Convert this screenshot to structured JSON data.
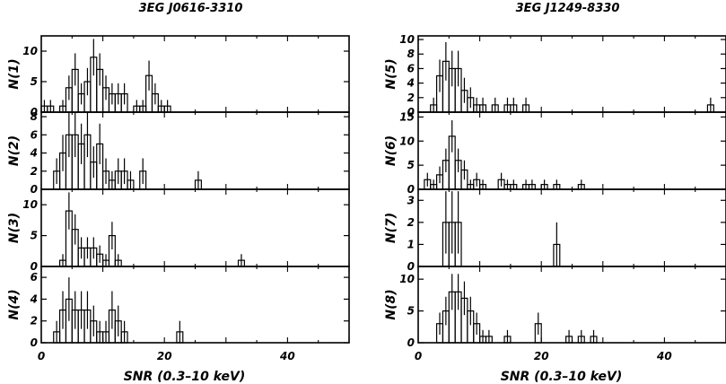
{
  "chart_data": [
    {
      "type": "histogram",
      "title": "3EG J0616-3310",
      "xlabel": "SNR (0.3–10 keV)",
      "xlim": [
        0,
        50
      ],
      "xticks": [
        "0",
        "20",
        "40"
      ],
      "panels": [
        {
          "ylabel": "N(1)",
          "ylim": [
            0,
            12.5
          ],
          "yticks": [
            "0",
            "5",
            "10"
          ],
          "bins": [
            [
              0,
              1
            ],
            [
              1,
              1
            ],
            [
              3,
              1
            ],
            [
              4,
              4
            ],
            [
              5,
              7
            ],
            [
              6,
              3
            ],
            [
              7,
              5
            ],
            [
              8,
              9
            ],
            [
              9,
              7
            ],
            [
              10,
              4
            ],
            [
              11,
              3
            ],
            [
              12,
              3
            ],
            [
              13,
              3
            ],
            [
              15,
              1
            ],
            [
              16,
              1
            ],
            [
              17,
              6
            ],
            [
              18,
              3
            ],
            [
              19,
              1
            ],
            [
              20,
              1
            ]
          ]
        },
        {
          "ylabel": "N(2)",
          "ylim": [
            0,
            8.5
          ],
          "yticks": [
            "0",
            "2",
            "4",
            "6",
            "8"
          ],
          "bins": [
            [
              2,
              2
            ],
            [
              3,
              4
            ],
            [
              4,
              6
            ],
            [
              5,
              6
            ],
            [
              6,
              5
            ],
            [
              7,
              6
            ],
            [
              8,
              3
            ],
            [
              9,
              5
            ],
            [
              10,
              2
            ],
            [
              11,
              1
            ],
            [
              12,
              2
            ],
            [
              13,
              2
            ],
            [
              14,
              1
            ],
            [
              16,
              2
            ],
            [
              25,
              1
            ]
          ]
        },
        {
          "ylabel": "N(3)",
          "ylim": [
            0,
            12.5
          ],
          "yticks": [
            "0",
            "5",
            "10"
          ],
          "bins": [
            [
              3,
              1
            ],
            [
              4,
              9
            ],
            [
              5,
              6
            ],
            [
              6,
              3
            ],
            [
              7,
              3
            ],
            [
              8,
              3
            ],
            [
              9,
              2
            ],
            [
              10,
              1
            ],
            [
              11,
              5
            ],
            [
              12,
              1
            ],
            [
              32,
              1
            ]
          ]
        },
        {
          "ylabel": "N(4)",
          "ylim": [
            0,
            7
          ],
          "yticks": [
            "0",
            "2",
            "4",
            "6"
          ],
          "bins": [
            [
              2,
              1
            ],
            [
              3,
              3
            ],
            [
              4,
              4
            ],
            [
              5,
              3
            ],
            [
              6,
              3
            ],
            [
              7,
              3
            ],
            [
              8,
              2
            ],
            [
              9,
              1
            ],
            [
              10,
              1
            ],
            [
              11,
              3
            ],
            [
              12,
              2
            ],
            [
              13,
              1
            ],
            [
              22,
              1
            ]
          ]
        }
      ]
    },
    {
      "type": "histogram",
      "title": "3EG J1249-8330",
      "xlabel": "SNR (0.3–10 keV)",
      "xlim": [
        0,
        50
      ],
      "xticks": [
        "0",
        "20",
        "40"
      ],
      "panels": [
        {
          "ylabel": "N(5)",
          "ylim": [
            0,
            10.5
          ],
          "yticks": [
            "0",
            "2",
            "4",
            "6",
            "8",
            "10"
          ],
          "bins": [
            [
              2,
              1
            ],
            [
              3,
              5
            ],
            [
              4,
              7
            ],
            [
              5,
              6
            ],
            [
              6,
              6
            ],
            [
              7,
              3
            ],
            [
              8,
              2
            ],
            [
              9,
              1
            ],
            [
              10,
              1
            ],
            [
              12,
              1
            ],
            [
              14,
              1
            ],
            [
              15,
              1
            ],
            [
              17,
              1
            ],
            [
              47,
              1
            ]
          ]
        },
        {
          "ylabel": "N(6)",
          "ylim": [
            0,
            16
          ],
          "yticks": [
            "0",
            "5",
            "10",
            "15"
          ],
          "bins": [
            [
              1,
              2
            ],
            [
              2,
              1
            ],
            [
              3,
              3
            ],
            [
              4,
              6
            ],
            [
              5,
              11
            ],
            [
              6,
              6
            ],
            [
              7,
              4
            ],
            [
              8,
              1
            ],
            [
              9,
              2
            ],
            [
              10,
              1
            ],
            [
              13,
              2
            ],
            [
              14,
              1
            ],
            [
              15,
              1
            ],
            [
              17,
              1
            ],
            [
              18,
              1
            ],
            [
              20,
              1
            ],
            [
              22,
              1
            ],
            [
              26,
              1
            ]
          ]
        },
        {
          "ylabel": "N(7)",
          "ylim": [
            0,
            3.5
          ],
          "yticks": [
            "0",
            "1",
            "2",
            "3"
          ],
          "bins": [
            [
              4,
              2
            ],
            [
              5,
              2
            ],
            [
              6,
              2
            ],
            [
              22,
              1
            ]
          ]
        },
        {
          "ylabel": "N(8)",
          "ylim": [
            0,
            12
          ],
          "yticks": [
            "0",
            "5",
            "10"
          ],
          "bins": [
            [
              3,
              3
            ],
            [
              4,
              5
            ],
            [
              5,
              8
            ],
            [
              6,
              8
            ],
            [
              7,
              7
            ],
            [
              8,
              5
            ],
            [
              9,
              3
            ],
            [
              10,
              1
            ],
            [
              11,
              1
            ],
            [
              14,
              1
            ],
            [
              19,
              3
            ],
            [
              24,
              1
            ],
            [
              26,
              1
            ],
            [
              28,
              1
            ]
          ]
        }
      ]
    }
  ]
}
